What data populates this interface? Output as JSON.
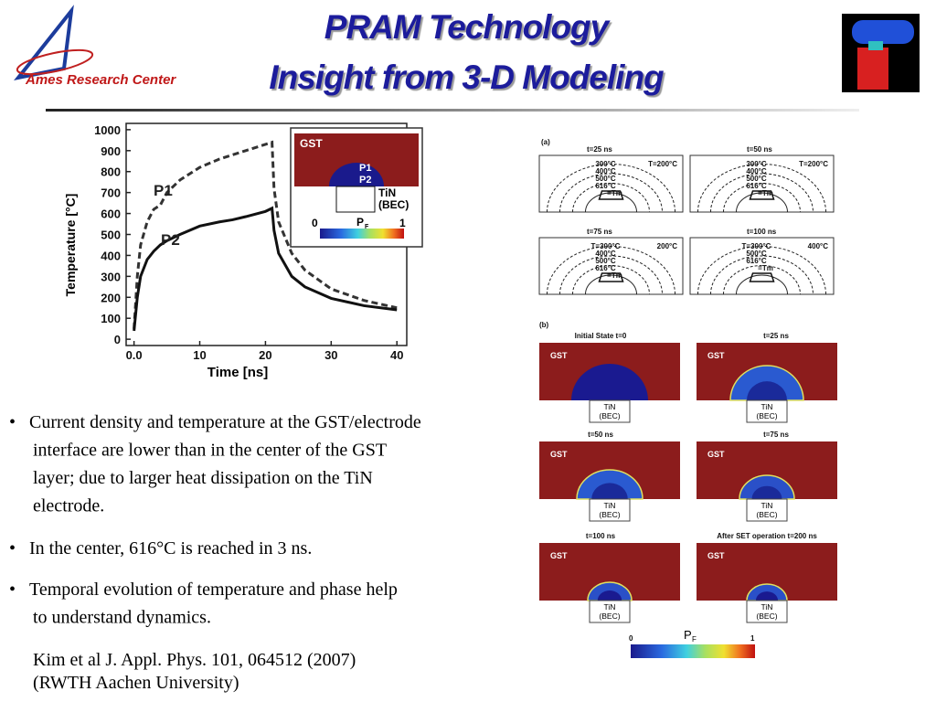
{
  "header": {
    "title": [
      "PRAM Technology",
      "Insight from 3-D Modeling"
    ],
    "logo": "Ames Research Center"
  },
  "chart_data": {
    "type": "line",
    "x_label": "Time [ns]",
    "y_label": "Temperature [°C]",
    "x": [
      0,
      0.5,
      1,
      2,
      3,
      4,
      5,
      7,
      10,
      13,
      15,
      17,
      20,
      21,
      21.3,
      22,
      24,
      26,
      30,
      35,
      40
    ],
    "series": [
      {
        "name": "P1",
        "color": "#333333",
        "style": "dashed",
        "values": [
          50,
          300,
          450,
          560,
          620,
          640,
          700,
          760,
          820,
          860,
          880,
          900,
          930,
          940,
          720,
          560,
          410,
          330,
          240,
          185,
          150
        ]
      },
      {
        "name": "P2",
        "color": "#111111",
        "style": "solid",
        "values": [
          40,
          200,
          300,
          380,
          420,
          450,
          470,
          500,
          540,
          560,
          570,
          585,
          610,
          625,
          520,
          410,
          300,
          250,
          195,
          160,
          140
        ]
      }
    ],
    "xlim": [
      -1.2,
      41.5
    ],
    "ylim": [
      -30,
      1030
    ],
    "xticks": [
      {
        "value": 0,
        "label": "0.0"
      },
      10,
      20,
      30,
      40
    ],
    "yticks": [
      0,
      100,
      200,
      300,
      400,
      500,
      600,
      700,
      800,
      900,
      1000
    ],
    "inset": {
      "region": "GST",
      "points": [
        "P1",
        "P2"
      ],
      "electrode": [
        "TiN",
        "(BEC)"
      ],
      "colorbar": {
        "min": 0,
        "name": "P",
        "sub": "F",
        "max": 1
      }
    }
  },
  "figure": {
    "a": {
      "label": "(a)",
      "panels": [
        {
          "title": "t=25 ns",
          "center": [
            "300°C",
            "400°C",
            "500°C",
            "616°C",
            "=Tm"
          ],
          "side": "T=200°C"
        },
        {
          "title": "t=50 ns",
          "center": [
            "300°C",
            "400°C",
            "500°C",
            "616°C",
            "=Tm"
          ],
          "side": "T=200°C"
        },
        {
          "title": "t=75 ns",
          "center": [
            "T=300°C",
            "400°C",
            "500°C",
            "616°C",
            "=Tm"
          ],
          "side": "200°C"
        },
        {
          "title": "t=100 ns",
          "center": [
            "T=300°C",
            "500°C",
            "616°C",
            "=Tm"
          ],
          "side": "400°C"
        }
      ]
    },
    "b": {
      "label": "(b)",
      "panels": [
        {
          "title": "Initial State t=0",
          "region": "GST",
          "electrode": [
            "TiN",
            "(BEC)"
          ]
        },
        {
          "title": "t=25 ns",
          "region": "GST",
          "electrode": [
            "TiN",
            "(BEC)"
          ]
        },
        {
          "title": "t=50 ns",
          "region": "GST",
          "electrode": [
            "TiN",
            "(BEC)"
          ]
        },
        {
          "title": "t=75 ns",
          "region": "GST",
          "electrode": [
            "TiN",
            "(BEC)"
          ]
        },
        {
          "title": "t=100 ns",
          "region": "GST",
          "electrode": [
            "TiN",
            "(BEC)"
          ]
        },
        {
          "title": "After SET operation  t=200 ns",
          "region": "GST",
          "electrode": [
            "TiN",
            "(BEC)"
          ]
        }
      ],
      "colorbar": {
        "min": 0,
        "name": "P",
        "sub": "F",
        "max": 1
      }
    }
  },
  "bullets": [
    [
      "Current density and temperature at the GST/electrode",
      "interface are lower than in the center of the GST",
      "layer; due to larger heat dissipation on the TiN",
      "electrode."
    ],
    [
      "In the center, 616°C is reached in 3 ns."
    ],
    [
      "Temporal evolution of temperature and phase help",
      "to understand dynamics."
    ]
  ],
  "citation": [
    "Kim et al J. Appl. Phys. 101, 064512 (2007)",
    "(RWTH Aachen University)"
  ]
}
